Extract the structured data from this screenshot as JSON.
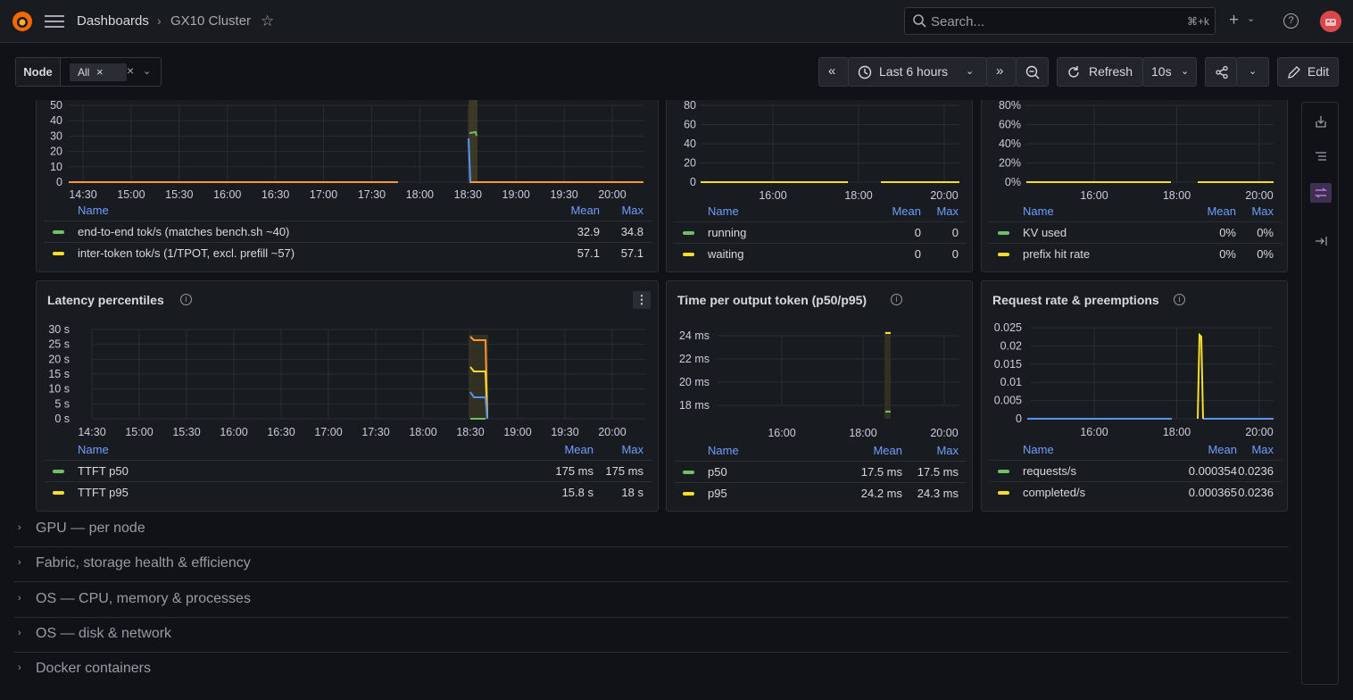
{
  "header": {
    "breadcrumb_root": "Dashboards",
    "breadcrumb_sep": "›",
    "dashboard_title": "GX10 Cluster",
    "search_placeholder": "Search...",
    "search_shortcut": "⌘+k",
    "plus": "+",
    "help": "?"
  },
  "variables": {
    "node_label": "Node",
    "node_value": "All",
    "remove": "×",
    "clear": "×",
    "caret": "⌄"
  },
  "toolbar": {
    "back": "«",
    "time_range": "Last 6 hours",
    "forward": "»",
    "refresh_label": "Refresh",
    "refresh_interval": "10s",
    "edit_label": "Edit"
  },
  "colors": {
    "green": "#73bf69",
    "yellow": "#fade2a",
    "blue": "#5794f2",
    "orange": "#ff9830",
    "legend_header": "#6e9fff"
  },
  "panels": {
    "throughput": {
      "yticks": [
        "50",
        "40",
        "30",
        "20",
        "10",
        "0"
      ],
      "xticks": [
        "14:30",
        "15:00",
        "15:30",
        "16:00",
        "16:30",
        "17:00",
        "17:30",
        "18:00",
        "18:30",
        "19:00",
        "19:30",
        "20:00"
      ],
      "legend": {
        "name": "Name",
        "mean": "Mean",
        "max": "Max",
        "rows": [
          {
            "name": "end-to-end tok/s (matches bench.sh ~40)",
            "mean": "32.9",
            "max": "34.8"
          },
          {
            "name": "inter-token tok/s (1/TPOT, excl. prefill ~57)",
            "mean": "57.1",
            "max": "57.1"
          }
        ]
      }
    },
    "requests": {
      "yticks": [
        "80",
        "60",
        "40",
        "20",
        "0"
      ],
      "xticks": [
        "16:00",
        "18:00",
        "20:00"
      ],
      "legend": {
        "name": "Name",
        "mean": "Mean",
        "max": "Max",
        "rows": [
          {
            "name": "running",
            "mean": "0",
            "max": "0"
          },
          {
            "name": "waiting",
            "mean": "0",
            "max": "0"
          }
        ]
      }
    },
    "cache": {
      "yticks": [
        "80%",
        "60%",
        "40%",
        "20%",
        "0%"
      ],
      "xticks": [
        "16:00",
        "18:00",
        "20:00"
      ],
      "legend": {
        "name": "Name",
        "mean": "Mean",
        "max": "Max",
        "rows": [
          {
            "name": "KV used",
            "mean": "0%",
            "max": "0%"
          },
          {
            "name": "prefix hit rate",
            "mean": "0%",
            "max": "0%"
          }
        ]
      }
    },
    "latency": {
      "title": "Latency percentiles",
      "menu": "⋮",
      "yticks": [
        "30 s",
        "25 s",
        "20 s",
        "15 s",
        "10 s",
        "5 s",
        "0 s"
      ],
      "xticks": [
        "14:30",
        "15:00",
        "15:30",
        "16:00",
        "16:30",
        "17:00",
        "17:30",
        "18:00",
        "18:30",
        "19:00",
        "19:30",
        "20:00"
      ],
      "legend": {
        "name": "Name",
        "mean": "Mean",
        "max": "Max",
        "rows": [
          {
            "name": "TTFT p50",
            "mean": "175 ms",
            "max": "175 ms"
          },
          {
            "name": "TTFT p95",
            "mean": "15.8 s",
            "max": "18 s"
          }
        ]
      }
    },
    "tpot": {
      "title": "Time per output token (p50/p95)",
      "yticks": [
        "24 ms",
        "22 ms",
        "20 ms",
        "18 ms"
      ],
      "xticks": [
        "16:00",
        "18:00",
        "20:00"
      ],
      "legend": {
        "name": "Name",
        "mean": "Mean",
        "max": "Max",
        "rows": [
          {
            "name": "p50",
            "mean": "17.5 ms",
            "max": "17.5 ms"
          },
          {
            "name": "p95",
            "mean": "24.2 ms",
            "max": "24.3 ms"
          }
        ]
      }
    },
    "reqrate": {
      "title": "Request rate & preemptions",
      "yticks": [
        "0.025",
        "0.02",
        "0.015",
        "0.01",
        "0.005",
        "0"
      ],
      "xticks": [
        "16:00",
        "18:00",
        "20:00"
      ],
      "legend": {
        "name": "Name",
        "mean": "Mean",
        "max": "Max",
        "rows": [
          {
            "name": "requests/s",
            "mean": "0.000354",
            "max": "0.0236"
          },
          {
            "name": "completed/s",
            "mean": "0.000365",
            "max": "0.0236"
          }
        ]
      }
    }
  },
  "rows": [
    {
      "title": "GPU — per node"
    },
    {
      "title": "Fabric, storage health & efficiency"
    },
    {
      "title": "OS — CPU, memory & processes"
    },
    {
      "title": "OS — disk & network"
    },
    {
      "title": "Docker containers"
    }
  ]
}
